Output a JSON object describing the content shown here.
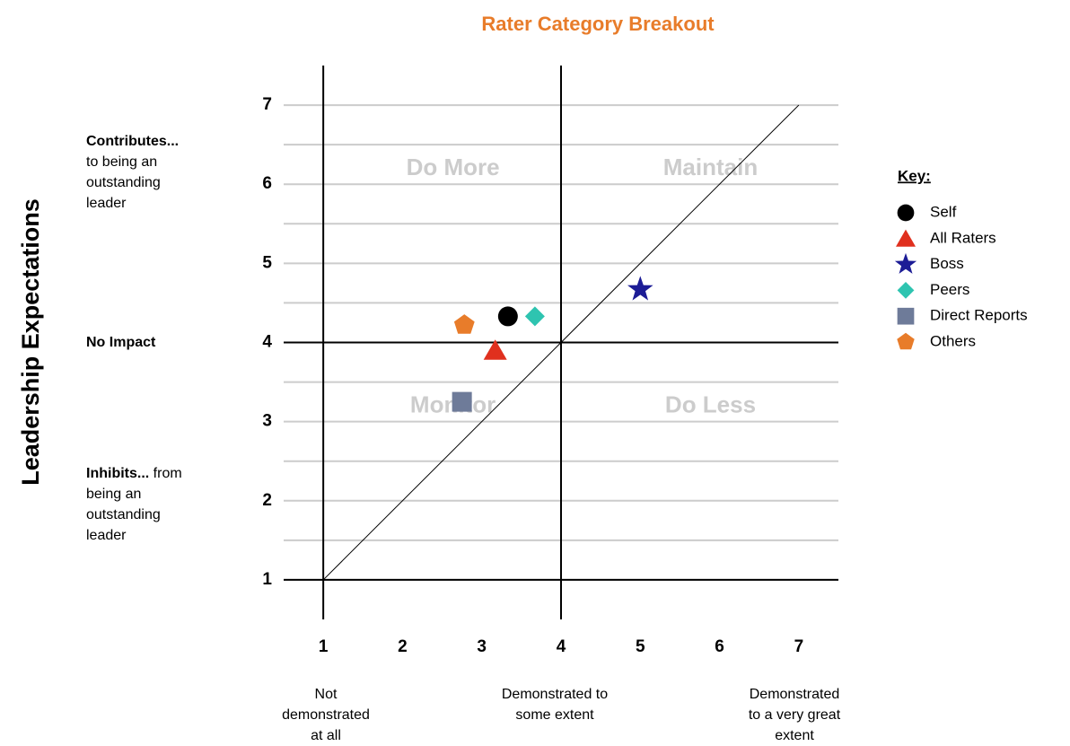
{
  "chart_data": {
    "type": "scatter",
    "title": "Rater Category Breakout",
    "y_label": "Leadership Expectations",
    "xlim": [
      0.5,
      7.5
    ],
    "ylim": [
      0.5,
      7.5
    ],
    "xticks": [
      1,
      2,
      3,
      4,
      5,
      6,
      7
    ],
    "yticks": [
      1,
      2,
      3,
      4,
      5,
      6,
      7
    ],
    "y_minor_ticks": [
      1.5,
      2.5,
      3.5,
      4.5,
      5.5,
      6.5
    ],
    "dividers": {
      "x": [
        1,
        4
      ],
      "y": [
        1,
        4
      ]
    },
    "reference_line": {
      "x": [
        1,
        7
      ],
      "y": [
        1,
        7
      ]
    },
    "quadrants": [
      "Do More",
      "Maintain",
      "Monitor",
      "Do Less"
    ],
    "left_labels": [
      {
        "bold": "Contributes...",
        "text": "to being an\noutstanding\nleader"
      },
      {
        "bold": "No Impact",
        "text": null
      },
      {
        "bold": "Inhibits...",
        "text": "from\nbeing an\noutstanding\nleader"
      }
    ],
    "bottom_labels": [
      "Not\ndemonstrated\nat all",
      "Demonstrated to\nsome extent",
      "Demonstrated\nto a very great\nextent"
    ],
    "legend_title": "Key:",
    "series": [
      {
        "name": "Self",
        "color": "#000000",
        "marker": "circle",
        "x": [
          3.33
        ],
        "values": [
          4.33
        ]
      },
      {
        "name": "All Raters",
        "color": "#e0301e",
        "marker": "triangle",
        "x": [
          3.17
        ],
        "values": [
          3.9
        ]
      },
      {
        "name": "Boss",
        "color": "#1c1c96",
        "marker": "star",
        "x": [
          5.0
        ],
        "values": [
          4.67
        ]
      },
      {
        "name": "Peers",
        "color": "#2ec4b0",
        "marker": "diamond",
        "x": [
          3.67
        ],
        "values": [
          4.33
        ]
      },
      {
        "name": "Direct Reports",
        "color": "#6e7b99",
        "marker": "square",
        "x": [
          2.75
        ],
        "values": [
          3.25
        ]
      },
      {
        "name": "Others",
        "color": "#e87c2a",
        "marker": "pentagon",
        "x": [
          2.78
        ],
        "values": [
          4.22
        ]
      }
    ]
  }
}
